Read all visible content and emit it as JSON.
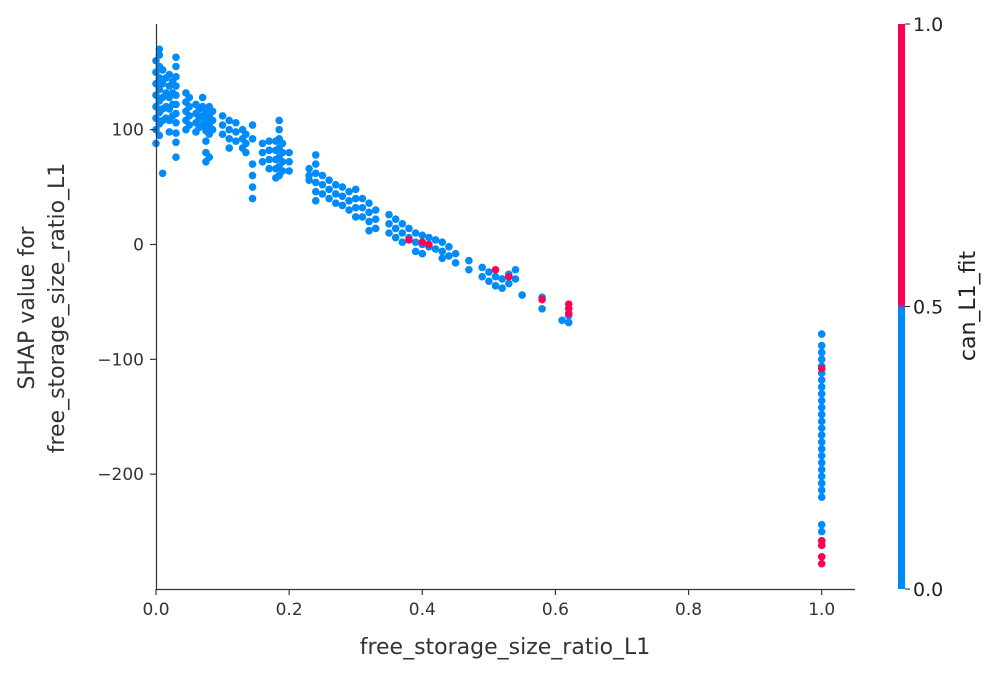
{
  "chart_data": {
    "type": "scatter",
    "xlabel": "free_storage_size_ratio_L1",
    "ylabel_line1": "SHAP value for",
    "ylabel_line2": "free_storage_size_ratio_L1",
    "xlim": [
      0.0,
      1.05
    ],
    "ylim": [
      -300,
      192
    ],
    "xticks": [
      0.0,
      0.2,
      0.4,
      0.6,
      0.8,
      1.0
    ],
    "xtick_labels": [
      "0.0",
      "0.2",
      "0.4",
      "0.6",
      "0.8",
      "1.0"
    ],
    "yticks": [
      100,
      0,
      -100,
      -200
    ],
    "ytick_labels": [
      "100",
      "0",
      "−100",
      "−200"
    ],
    "grid": false,
    "color_feature": "can_L1_fit",
    "colorbar": {
      "label": "can_L1_fit",
      "ticks": [
        0.0,
        0.5,
        1.0
      ],
      "tick_labels": [
        "0.0",
        "0.5",
        "1.0"
      ],
      "color_low": "#008bfb",
      "color_high": "#ff0052"
    },
    "series": [
      {
        "color_value": 0,
        "color": "#008bfb",
        "points": [
          [
            0.0,
            160
          ],
          [
            0.0,
            150
          ],
          [
            0.0,
            140
          ],
          [
            0.0,
            130
          ],
          [
            0.0,
            120
          ],
          [
            0.0,
            110
          ],
          [
            0.0,
            100
          ],
          [
            0.0,
            88
          ],
          [
            0.005,
            170
          ],
          [
            0.005,
            165
          ],
          [
            0.005,
            155
          ],
          [
            0.005,
            145
          ],
          [
            0.005,
            135
          ],
          [
            0.005,
            125
          ],
          [
            0.005,
            115
          ],
          [
            0.005,
            105
          ],
          [
            0.005,
            95
          ],
          [
            0.01,
            152
          ],
          [
            0.01,
            140
          ],
          [
            0.01,
            128
          ],
          [
            0.01,
            118
          ],
          [
            0.01,
            108
          ],
          [
            0.01,
            62
          ],
          [
            0.015,
            145
          ],
          [
            0.015,
            132
          ],
          [
            0.015,
            120
          ],
          [
            0.015,
            110
          ],
          [
            0.02,
            148
          ],
          [
            0.02,
            138
          ],
          [
            0.02,
            128
          ],
          [
            0.02,
            118
          ],
          [
            0.02,
            108
          ],
          [
            0.02,
            98
          ],
          [
            0.025,
            142
          ],
          [
            0.025,
            132
          ],
          [
            0.025,
            122
          ],
          [
            0.025,
            112
          ],
          [
            0.03,
            163
          ],
          [
            0.03,
            155
          ],
          [
            0.03,
            146
          ],
          [
            0.03,
            138
          ],
          [
            0.03,
            130
          ],
          [
            0.03,
            122
          ],
          [
            0.03,
            114
          ],
          [
            0.03,
            106
          ],
          [
            0.03,
            97
          ],
          [
            0.03,
            89
          ],
          [
            0.03,
            76
          ],
          [
            0.045,
            132
          ],
          [
            0.045,
            124
          ],
          [
            0.045,
            116
          ],
          [
            0.045,
            108
          ],
          [
            0.045,
            100
          ],
          [
            0.05,
            128
          ],
          [
            0.05,
            120
          ],
          [
            0.05,
            112
          ],
          [
            0.05,
            104
          ],
          [
            0.06,
            122
          ],
          [
            0.06,
            114
          ],
          [
            0.06,
            106
          ],
          [
            0.06,
            98
          ],
          [
            0.065,
            118
          ],
          [
            0.065,
            110
          ],
          [
            0.065,
            102
          ],
          [
            0.07,
            128
          ],
          [
            0.07,
            120
          ],
          [
            0.07,
            112
          ],
          [
            0.07,
            104
          ],
          [
            0.075,
            115
          ],
          [
            0.075,
            107
          ],
          [
            0.075,
            99
          ],
          [
            0.075,
            90
          ],
          [
            0.075,
            80
          ],
          [
            0.075,
            72
          ],
          [
            0.08,
            120
          ],
          [
            0.08,
            112
          ],
          [
            0.08,
            104
          ],
          [
            0.08,
            96
          ],
          [
            0.08,
            76
          ],
          [
            0.085,
            116
          ],
          [
            0.085,
            108
          ],
          [
            0.085,
            100
          ],
          [
            0.1,
            112
          ],
          [
            0.1,
            104
          ],
          [
            0.1,
            96
          ],
          [
            0.11,
            108
          ],
          [
            0.11,
            100
          ],
          [
            0.11,
            92
          ],
          [
            0.11,
            84
          ],
          [
            0.12,
            106
          ],
          [
            0.12,
            98
          ],
          [
            0.12,
            90
          ],
          [
            0.13,
            100
          ],
          [
            0.13,
            92
          ],
          [
            0.13,
            84
          ],
          [
            0.135,
            96
          ],
          [
            0.135,
            88
          ],
          [
            0.135,
            80
          ],
          [
            0.145,
            104
          ],
          [
            0.145,
            92
          ],
          [
            0.145,
            70
          ],
          [
            0.145,
            60
          ],
          [
            0.145,
            50
          ],
          [
            0.145,
            40
          ],
          [
            0.16,
            88
          ],
          [
            0.16,
            80
          ],
          [
            0.16,
            72
          ],
          [
            0.17,
            90
          ],
          [
            0.17,
            82
          ],
          [
            0.17,
            74
          ],
          [
            0.17,
            66
          ],
          [
            0.18,
            90
          ],
          [
            0.18,
            82
          ],
          [
            0.18,
            74
          ],
          [
            0.18,
            66
          ],
          [
            0.18,
            58
          ],
          [
            0.185,
            108
          ],
          [
            0.185,
            100
          ],
          [
            0.185,
            92
          ],
          [
            0.185,
            84
          ],
          [
            0.185,
            76
          ],
          [
            0.185,
            68
          ],
          [
            0.185,
            60
          ],
          [
            0.19,
            88
          ],
          [
            0.19,
            80
          ],
          [
            0.19,
            72
          ],
          [
            0.19,
            64
          ],
          [
            0.2,
            80
          ],
          [
            0.2,
            72
          ],
          [
            0.2,
            64
          ],
          [
            0.23,
            66
          ],
          [
            0.23,
            60
          ],
          [
            0.23,
            56
          ],
          [
            0.24,
            78
          ],
          [
            0.24,
            70
          ],
          [
            0.24,
            62
          ],
          [
            0.24,
            54
          ],
          [
            0.24,
            46
          ],
          [
            0.24,
            38
          ],
          [
            0.25,
            60
          ],
          [
            0.25,
            52
          ],
          [
            0.25,
            44
          ],
          [
            0.26,
            56
          ],
          [
            0.26,
            48
          ],
          [
            0.26,
            40
          ],
          [
            0.27,
            52
          ],
          [
            0.27,
            44
          ],
          [
            0.27,
            36
          ],
          [
            0.28,
            50
          ],
          [
            0.28,
            42
          ],
          [
            0.28,
            34
          ],
          [
            0.29,
            46
          ],
          [
            0.29,
            38
          ],
          [
            0.29,
            30
          ],
          [
            0.3,
            48
          ],
          [
            0.3,
            40
          ],
          [
            0.3,
            32
          ],
          [
            0.3,
            24
          ],
          [
            0.31,
            40
          ],
          [
            0.31,
            32
          ],
          [
            0.31,
            24
          ],
          [
            0.32,
            36
          ],
          [
            0.32,
            28
          ],
          [
            0.32,
            20
          ],
          [
            0.32,
            12
          ],
          [
            0.33,
            30
          ],
          [
            0.33,
            22
          ],
          [
            0.33,
            14
          ],
          [
            0.35,
            26
          ],
          [
            0.35,
            18
          ],
          [
            0.35,
            10
          ],
          [
            0.36,
            22
          ],
          [
            0.36,
            14
          ],
          [
            0.36,
            6
          ],
          [
            0.37,
            18
          ],
          [
            0.37,
            10
          ],
          [
            0.37,
            2
          ],
          [
            0.38,
            14
          ],
          [
            0.38,
            6
          ],
          [
            0.39,
            10
          ],
          [
            0.39,
            2
          ],
          [
            0.39,
            -6
          ],
          [
            0.4,
            8
          ],
          [
            0.4,
            0
          ],
          [
            0.4,
            -8
          ],
          [
            0.41,
            6
          ],
          [
            0.41,
            -2
          ],
          [
            0.42,
            4
          ],
          [
            0.42,
            -4
          ],
          [
            0.43,
            2
          ],
          [
            0.43,
            -6
          ],
          [
            0.43,
            -12
          ],
          [
            0.44,
            -2
          ],
          [
            0.44,
            -10
          ],
          [
            0.45,
            -8
          ],
          [
            0.45,
            -16
          ],
          [
            0.47,
            -14
          ],
          [
            0.47,
            -22
          ],
          [
            0.49,
            -20
          ],
          [
            0.49,
            -28
          ],
          [
            0.5,
            -24
          ],
          [
            0.5,
            -32
          ],
          [
            0.51,
            -28
          ],
          [
            0.51,
            -36
          ],
          [
            0.52,
            -30
          ],
          [
            0.52,
            -38
          ],
          [
            0.53,
            -26
          ],
          [
            0.53,
            -34
          ],
          [
            0.54,
            -22
          ],
          [
            0.54,
            -30
          ],
          [
            0.55,
            -44
          ],
          [
            0.58,
            -46
          ],
          [
            0.58,
            -56
          ],
          [
            0.61,
            -66
          ],
          [
            0.62,
            -68
          ],
          [
            0.62,
            -62
          ],
          [
            1.0,
            -78
          ],
          [
            1.0,
            -88
          ],
          [
            1.0,
            -94
          ],
          [
            1.0,
            -100
          ],
          [
            1.0,
            -106
          ],
          [
            1.0,
            -112
          ],
          [
            1.0,
            -118
          ],
          [
            1.0,
            -124
          ],
          [
            1.0,
            -130
          ],
          [
            1.0,
            -136
          ],
          [
            1.0,
            -142
          ],
          [
            1.0,
            -148
          ],
          [
            1.0,
            -154
          ],
          [
            1.0,
            -160
          ],
          [
            1.0,
            -166
          ],
          [
            1.0,
            -172
          ],
          [
            1.0,
            -178
          ],
          [
            1.0,
            -184
          ],
          [
            1.0,
            -190
          ],
          [
            1.0,
            -196
          ],
          [
            1.0,
            -202
          ],
          [
            1.0,
            -208
          ],
          [
            1.0,
            -214
          ],
          [
            1.0,
            -220
          ],
          [
            1.0,
            -244
          ],
          [
            1.0,
            -250
          ],
          [
            1.0,
            -258
          ]
        ]
      },
      {
        "color_value": 1,
        "color": "#ff0052",
        "points": [
          [
            0.38,
            4
          ],
          [
            0.4,
            2
          ],
          [
            0.41,
            0
          ],
          [
            0.51,
            -22
          ],
          [
            0.53,
            -28
          ],
          [
            0.58,
            -48
          ],
          [
            0.62,
            -52
          ],
          [
            0.62,
            -56
          ],
          [
            0.62,
            -60
          ],
          [
            1.0,
            -108
          ],
          [
            1.0,
            -258
          ],
          [
            1.0,
            -262
          ],
          [
            1.0,
            -272
          ],
          [
            1.0,
            -278
          ]
        ]
      }
    ]
  }
}
